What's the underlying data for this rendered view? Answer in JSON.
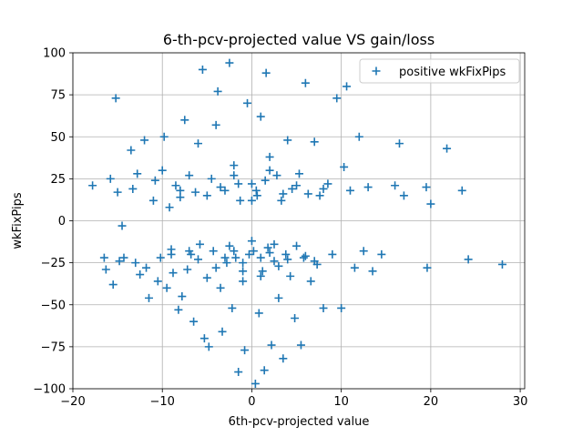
{
  "chart_data": {
    "type": "scatter",
    "title": "6-th-pcv-projected value VS gain/loss",
    "xlabel": "6th-pcv-projected value",
    "ylabel": "wkFixPips",
    "xlim": [
      -20,
      30.5
    ],
    "ylim": [
      -100,
      100
    ],
    "xticks": [
      -20,
      -10,
      0,
      10,
      20,
      30
    ],
    "yticks": [
      -100,
      -75,
      -50,
      -25,
      0,
      25,
      50,
      75,
      100
    ],
    "xtick_labels": [
      "−20",
      "−10",
      "0",
      "10",
      "20",
      "30"
    ],
    "ytick_labels": [
      "−100",
      "−75",
      "−50",
      "−25",
      "0",
      "25",
      "50",
      "75",
      "100"
    ],
    "grid": true,
    "legend_position": "top-right",
    "marker": "plus",
    "color": "#1f77b4",
    "series": [
      {
        "name": "positive wkFixPips",
        "color": "#1f77b4",
        "points": [
          [
            -17.8,
            21
          ],
          [
            -16.5,
            -22
          ],
          [
            -16.3,
            -29
          ],
          [
            -15.8,
            25
          ],
          [
            -15.5,
            -38
          ],
          [
            -15.2,
            73
          ],
          [
            -15,
            17
          ],
          [
            -14.8,
            -24
          ],
          [
            -14.5,
            -3
          ],
          [
            -14.3,
            -22
          ],
          [
            -13.5,
            42
          ],
          [
            -13.3,
            19
          ],
          [
            -13,
            -25
          ],
          [
            -12.8,
            28
          ],
          [
            -12.5,
            -32
          ],
          [
            -12,
            48
          ],
          [
            -11.8,
            -28
          ],
          [
            -11.5,
            -46
          ],
          [
            -11,
            12
          ],
          [
            -10.8,
            24
          ],
          [
            -10.5,
            -36
          ],
          [
            -10.2,
            -22
          ],
          [
            -10,
            30
          ],
          [
            -9.8,
            50
          ],
          [
            -9.5,
            -40
          ],
          [
            -9.2,
            8
          ],
          [
            -9,
            -17
          ],
          [
            -8.8,
            -31
          ],
          [
            -8.5,
            21
          ],
          [
            -8.2,
            -53
          ],
          [
            -8,
            14
          ],
          [
            -7.8,
            -45
          ],
          [
            -7.5,
            60
          ],
          [
            -7.2,
            -29
          ],
          [
            -7,
            27
          ],
          [
            -6.8,
            -20
          ],
          [
            -6.5,
            -60
          ],
          [
            -6.3,
            17
          ],
          [
            -6,
            46
          ],
          [
            -5.8,
            -14
          ],
          [
            -5.5,
            90
          ],
          [
            -5.3,
            -70
          ],
          [
            -5,
            -34
          ],
          [
            -4.8,
            -75
          ],
          [
            -4.5,
            25
          ],
          [
            -4.3,
            -18
          ],
          [
            -4,
            57
          ],
          [
            -3.8,
            77
          ],
          [
            -3.5,
            -40
          ],
          [
            -3.3,
            -66
          ],
          [
            -3,
            18
          ],
          [
            -2.8,
            -25
          ],
          [
            -2.5,
            94
          ],
          [
            -2.2,
            -52
          ],
          [
            -2,
            33
          ],
          [
            -1.8,
            -22
          ],
          [
            -1.5,
            -90
          ],
          [
            -1.3,
            12
          ],
          [
            -1,
            -36
          ],
          [
            -0.8,
            -77
          ],
          [
            -0.5,
            70
          ],
          [
            -0.3,
            -20
          ],
          [
            0,
            22
          ],
          [
            0.2,
            -18
          ],
          [
            0.4,
            -97
          ],
          [
            0.6,
            15
          ],
          [
            0.8,
            -55
          ],
          [
            1,
            62
          ],
          [
            1.2,
            -30
          ],
          [
            1.4,
            -89
          ],
          [
            1.6,
            88
          ],
          [
            1.8,
            -16
          ],
          [
            2,
            38
          ],
          [
            2.2,
            -74
          ],
          [
            2.5,
            -24
          ],
          [
            2.8,
            27
          ],
          [
            3,
            -46
          ],
          [
            3.3,
            12
          ],
          [
            3.5,
            -82
          ],
          [
            3.8,
            -20
          ],
          [
            4,
            48
          ],
          [
            4.3,
            -33
          ],
          [
            4.5,
            19
          ],
          [
            4.8,
            -58
          ],
          [
            5,
            -15
          ],
          [
            5.3,
            28
          ],
          [
            5.5,
            -74
          ],
          [
            5.8,
            -22
          ],
          [
            6,
            82
          ],
          [
            6.3,
            16
          ],
          [
            6.6,
            -36
          ],
          [
            7,
            47
          ],
          [
            7.3,
            -26
          ],
          [
            7.6,
            15
          ],
          [
            8,
            -52
          ],
          [
            8.5,
            22
          ],
          [
            9,
            -20
          ],
          [
            9.5,
            73
          ],
          [
            10,
            -52
          ],
          [
            10.3,
            32
          ],
          [
            10.6,
            80
          ],
          [
            11,
            18
          ],
          [
            11.5,
            -28
          ],
          [
            12,
            50
          ],
          [
            12.5,
            -18
          ],
          [
            13,
            20
          ],
          [
            13.5,
            -30
          ],
          [
            14.5,
            -20
          ],
          [
            16,
            21
          ],
          [
            16.5,
            46
          ],
          [
            17,
            15
          ],
          [
            19.5,
            20
          ],
          [
            19.6,
            -28
          ],
          [
            20,
            10
          ],
          [
            21.8,
            43
          ],
          [
            23.5,
            18
          ],
          [
            24.2,
            -23
          ],
          [
            28,
            -26
          ],
          [
            -3,
            -22
          ],
          [
            -2,
            -18
          ],
          [
            -1,
            -25
          ],
          [
            1,
            -22
          ],
          [
            2,
            -19
          ],
          [
            3,
            -27
          ],
          [
            -4,
            -28
          ],
          [
            4,
            -23
          ],
          [
            -2.5,
            -15
          ],
          [
            2.5,
            -14
          ],
          [
            -3.5,
            20
          ],
          [
            -1.5,
            22
          ],
          [
            0.5,
            18
          ],
          [
            1.5,
            24
          ],
          [
            3.5,
            16
          ],
          [
            -5,
            15
          ],
          [
            5,
            21
          ],
          [
            -2,
            27
          ],
          [
            2,
            30
          ],
          [
            -6,
            -23
          ],
          [
            6,
            -21
          ],
          [
            -7,
            -18
          ],
          [
            7,
            -24
          ],
          [
            -1,
            -30
          ],
          [
            1,
            -33
          ],
          [
            0,
            -12
          ],
          [
            0,
            12
          ],
          [
            -8,
            18
          ],
          [
            8,
            19
          ],
          [
            -9,
            -20
          ]
        ]
      }
    ]
  }
}
